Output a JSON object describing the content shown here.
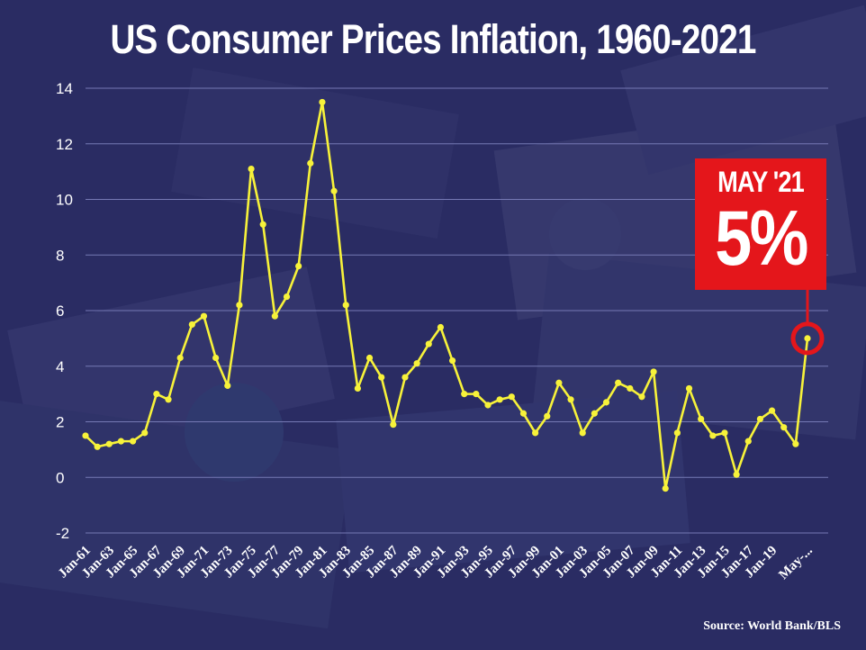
{
  "title": "US Consumer Prices Inflation, 1960-2021",
  "source": "Source: World Bank/BLS",
  "callout": {
    "label": "MAY '21",
    "value": "5%"
  },
  "colors": {
    "line": "#f7f23a",
    "callout": "#e4161b",
    "grid": "#7579b4",
    "background": "#2a2c63",
    "text": "#ffffff"
  },
  "chart_data": {
    "type": "line",
    "title": "US Consumer Prices Inflation, 1960-2021",
    "xlabel": "",
    "ylabel": "",
    "ylim": [
      -2,
      14
    ],
    "yticks": [
      14,
      12,
      10,
      8,
      6,
      4,
      2,
      0,
      -2
    ],
    "grid": true,
    "x_tick_labels": [
      "Jan-61",
      "Jan-63",
      "Jan-65",
      "Jan-67",
      "Jan-69",
      "Jan-71",
      "Jan-73",
      "Jan-75",
      "Jan-77",
      "Jan-79",
      "Jan-81",
      "Jan-83",
      "Jan-85",
      "Jan-87",
      "Jan-89",
      "Jan-91",
      "Jan-93",
      "Jan-95",
      "Jan-97",
      "Jan-99",
      "Jan-01",
      "Jan-03",
      "Jan-05",
      "Jan-07",
      "Jan-09",
      "Jan-11",
      "Jan-13",
      "Jan-15",
      "Jan-17",
      "Jan-19",
      "May-..."
    ],
    "series": [
      {
        "values": [
          1.5,
          1.1,
          1.2,
          1.3,
          1.3,
          1.6,
          3.0,
          2.8,
          4.3,
          5.5,
          5.8,
          4.3,
          3.3,
          6.2,
          11.1,
          9.1,
          5.8,
          6.5,
          7.6,
          11.3,
          13.5,
          10.3,
          6.2,
          3.2,
          4.3,
          3.6,
          1.9,
          3.6,
          4.1,
          4.8,
          5.4,
          4.2,
          3.0,
          3.0,
          2.6,
          2.8,
          2.9,
          2.3,
          1.6,
          2.2,
          3.4,
          2.8,
          1.6,
          2.3,
          2.7,
          3.4,
          3.2,
          2.9,
          3.8,
          -0.4,
          1.6,
          3.2,
          2.1,
          1.5,
          1.6,
          0.1,
          1.3,
          2.1,
          2.4,
          1.8,
          1.2,
          5.0
        ]
      }
    ]
  }
}
